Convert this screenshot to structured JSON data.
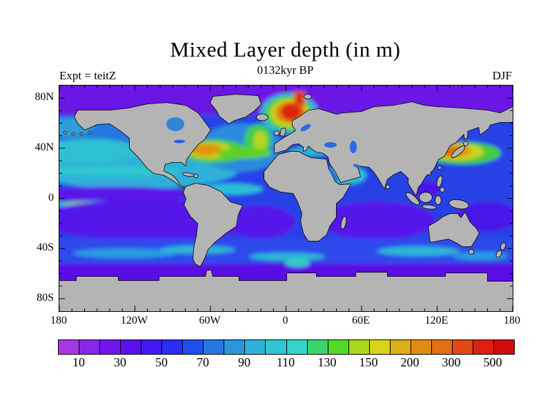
{
  "header": {
    "title": "Mixed Layer depth (in m)",
    "subtitle": "0132kyr BP",
    "experiment_label": "Expt = teitZ",
    "season_label": "DJF"
  },
  "chart_data": {
    "type": "heatmap",
    "subtype": "filled-contour global map, equirectangular projection",
    "title": "Mixed Layer depth (in m)",
    "subtitle": "0132kyr BP",
    "annotations": {
      "top_left": "Expt = teitZ",
      "top_right": "DJF"
    },
    "land_color": "#b4b4b4",
    "coastline_color": "#000000",
    "x_axis": {
      "range_deg": [
        -180,
        180
      ],
      "minor_tick_interval_deg": 10,
      "major_tick_interval_deg": 60,
      "major_ticks": [
        {
          "label": "180",
          "lon": -180
        },
        {
          "label": "120W",
          "lon": -120
        },
        {
          "label": "60W",
          "lon": -60
        },
        {
          "label": "0",
          "lon": 0
        },
        {
          "label": "60E",
          "lon": 60
        },
        {
          "label": "120E",
          "lon": 120
        },
        {
          "label": "180",
          "lon": 180
        }
      ]
    },
    "y_axis": {
      "range_deg": [
        -90,
        90
      ],
      "minor_tick_interval_deg": 10,
      "major_tick_interval_deg": 40,
      "major_ticks": [
        {
          "label": "80N",
          "lat": 80
        },
        {
          "label": "40N",
          "lat": 40
        },
        {
          "label": "0",
          "lat": 0
        },
        {
          "label": "40S",
          "lat": -40
        },
        {
          "label": "80S",
          "lat": -80
        }
      ]
    },
    "colorbar": {
      "units": "m",
      "n_cells": 22,
      "cell_colors": [
        "#a838e0",
        "#8826e8",
        "#7018ec",
        "#5a10f0",
        "#4418f2",
        "#2c2cf4",
        "#1d50ee",
        "#2478e4",
        "#2b96dc",
        "#2fb2da",
        "#2fc6d6",
        "#36d4cc",
        "#3ad46a",
        "#52da28",
        "#a8d81e",
        "#d8d41a",
        "#dcae1a",
        "#e08c14",
        "#e46e12",
        "#e04814",
        "#de2010",
        "#d00d0c"
      ],
      "labels": [
        {
          "text": "10",
          "boundary_index": 1
        },
        {
          "text": "30",
          "boundary_index": 3
        },
        {
          "text": "50",
          "boundary_index": 5
        },
        {
          "text": "70",
          "boundary_index": 7
        },
        {
          "text": "90",
          "boundary_index": 9
        },
        {
          "text": "110",
          "boundary_index": 11
        },
        {
          "text": "130",
          "boundary_index": 13
        },
        {
          "text": "150",
          "boundary_index": 15
        },
        {
          "text": "200",
          "boundary_index": 17
        },
        {
          "text": "300",
          "boundary_index": 19
        },
        {
          "text": "500",
          "boundary_index": 21
        }
      ],
      "labeled_levels_m": [
        10,
        30,
        50,
        70,
        90,
        110,
        130,
        150,
        200,
        300,
        500
      ]
    },
    "features": [
      {
        "region": "Norwegian / Greenland Seas deep convection",
        "approx_lon": 0,
        "approx_lat": 68,
        "depth_m": "300-500+"
      },
      {
        "region": "NW Atlantic / Gulf Stream",
        "approx_lon": -62,
        "approx_lat": 37,
        "depth_m": "150-300"
      },
      {
        "region": "NE Atlantic west of Ireland / Biscay",
        "approx_lon": -18,
        "approx_lat": 50,
        "depth_m": "110-200"
      },
      {
        "region": "NW Pacific / Kuroshio extension",
        "approx_lon": 155,
        "approx_lat": 37,
        "depth_m": "150-300"
      },
      {
        "region": "Arabian Sea",
        "approx_lon": 64,
        "approx_lat": 20,
        "depth_m": "110-200"
      },
      {
        "region": "Equatorial east Pacific tongue",
        "approx_lon": -130,
        "approx_lat": -3,
        "depth_m": "90-130"
      },
      {
        "region": "North Pacific subtropics",
        "approx_lon": -150,
        "approx_lat": 25,
        "depth_m": "70-110"
      },
      {
        "region": "Southern Ocean 40-55S streaks",
        "approx_lon": -90,
        "approx_lat": -45,
        "depth_m": "50-90"
      },
      {
        "region": "Southern subtropical gyres",
        "approx_lon": -110,
        "approx_lat": -20,
        "depth_m": "10-30"
      },
      {
        "region": "Arctic and 55S-70S belt",
        "approx_lon": 0,
        "approx_lat": 85,
        "depth_m": "10-30"
      }
    ]
  }
}
